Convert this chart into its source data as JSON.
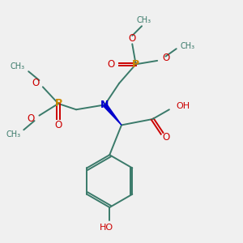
{
  "background_color": "#f0f0f0",
  "bond_color": "#3a7a6a",
  "N_color": "#0000cc",
  "O_color": "#cc0000",
  "P_color": "#cc8800",
  "line_width": 1.4,
  "figsize": [
    3.0,
    3.0
  ],
  "dpi": 100,
  "xlim": [
    0,
    10
  ],
  "ylim": [
    0,
    10
  ]
}
